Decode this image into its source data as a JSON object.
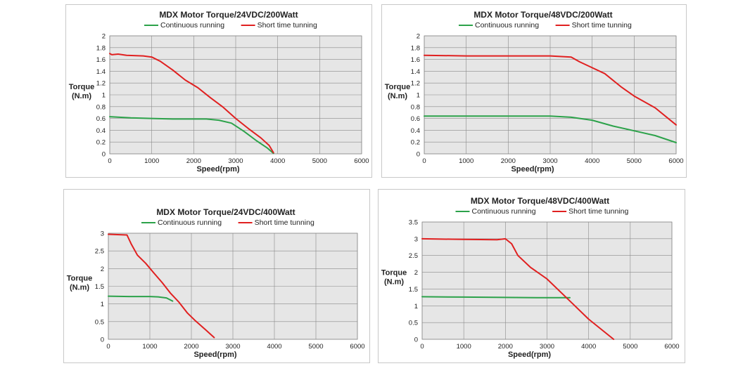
{
  "colors": {
    "continuous": "#2ca24a",
    "short": "#e02020",
    "plot_bg": "#e6e6e6",
    "grid": "#8a8a8a"
  },
  "chart_data": [
    {
      "type": "line",
      "title": "MDX  Motor Torque/24VDC/200Watt",
      "xlabel": "Speed(rpm)",
      "ylabel_line1": "Torque",
      "ylabel_line2": "(N.m)",
      "xlim": [
        0,
        6000
      ],
      "ylim": [
        0,
        2
      ],
      "x_ticks": [
        "0",
        "1000",
        "2000",
        "3000",
        "4000",
        "5000",
        "6000"
      ],
      "y_ticks": [
        "0",
        "0.2",
        "0.4",
        "0.6",
        "0.8",
        "1",
        "1.2",
        "1.4",
        "1.6",
        "1.8",
        "2"
      ],
      "legend": "top",
      "grid": true,
      "series": [
        {
          "name": "Continuous running",
          "color": "continuous",
          "x": [
            0,
            500,
            1000,
            1500,
            2000,
            2300,
            2600,
            2900,
            3200,
            3500,
            3750,
            3900
          ],
          "y": [
            0.63,
            0.61,
            0.6,
            0.59,
            0.59,
            0.59,
            0.57,
            0.52,
            0.38,
            0.22,
            0.1,
            0.01
          ]
        },
        {
          "name": "Short time tunning",
          "color": "short",
          "x": [
            0,
            50,
            200,
            400,
            800,
            1000,
            1200,
            1500,
            1800,
            2100,
            2400,
            2700,
            3000,
            3300,
            3600,
            3800,
            3900
          ],
          "y": [
            1.7,
            1.68,
            1.69,
            1.67,
            1.66,
            1.64,
            1.57,
            1.42,
            1.25,
            1.12,
            0.95,
            0.79,
            0.6,
            0.43,
            0.27,
            0.14,
            0.02
          ]
        }
      ]
    },
    {
      "type": "line",
      "title": "MDX  Motor Torque/48VDC/200Watt",
      "xlabel": "Speed(rpm)",
      "ylabel_line1": "Torque",
      "ylabel_line2": "(N.m)",
      "xlim": [
        0,
        6000
      ],
      "ylim": [
        0,
        2
      ],
      "x_ticks": [
        "0",
        "1000",
        "2000",
        "3000",
        "4000",
        "5000",
        "6000"
      ],
      "y_ticks": [
        "0",
        "0.2",
        "0.4",
        "0.6",
        "0.8",
        "1",
        "1.2",
        "1.4",
        "1.6",
        "1.8",
        "2"
      ],
      "legend": "top",
      "grid": true,
      "series": [
        {
          "name": "Continuous running",
          "color": "continuous",
          "x": [
            0,
            1000,
            2000,
            3000,
            3500,
            4000,
            4500,
            5000,
            5500,
            6000
          ],
          "y": [
            0.64,
            0.64,
            0.64,
            0.64,
            0.62,
            0.57,
            0.47,
            0.39,
            0.31,
            0.19
          ]
        },
        {
          "name": "Short time tunning",
          "color": "short",
          "x": [
            0,
            1000,
            2000,
            3000,
            3500,
            3700,
            4000,
            4300,
            4700,
            5000,
            5500,
            6000
          ],
          "y": [
            1.67,
            1.66,
            1.66,
            1.66,
            1.64,
            1.56,
            1.46,
            1.36,
            1.13,
            0.98,
            0.78,
            0.49
          ]
        }
      ]
    },
    {
      "type": "line",
      "title": "MDX  Motor Torque/24VDC/400Watt",
      "xlabel": "Speed(rpm)",
      "ylabel_line1": "Torque",
      "ylabel_line2": "(N.m)",
      "xlim": [
        0,
        6000
      ],
      "ylim": [
        0,
        3
      ],
      "x_ticks": [
        "0",
        "1000",
        "2000",
        "3000",
        "4000",
        "5000",
        "6000"
      ],
      "y_ticks": [
        "0",
        "0.5",
        "1",
        "1.5",
        "2",
        "2.5",
        "3"
      ],
      "legend": "top",
      "grid": true,
      "series": [
        {
          "name": "Continuous running",
          "color": "continuous",
          "x": [
            0,
            500,
            1000,
            1200,
            1400,
            1550
          ],
          "y": [
            1.22,
            1.21,
            1.21,
            1.2,
            1.17,
            1.08
          ]
        },
        {
          "name": "Short time tunning",
          "color": "short",
          "x": [
            0,
            450,
            550,
            700,
            900,
            1100,
            1300,
            1500,
            1700,
            1900,
            2100,
            2350,
            2550
          ],
          "y": [
            2.97,
            2.95,
            2.7,
            2.38,
            2.15,
            1.87,
            1.6,
            1.3,
            1.05,
            0.75,
            0.52,
            0.26,
            0.05
          ]
        }
      ]
    },
    {
      "type": "line",
      "title": "MDX  Motor Torque/48VDC/400Watt",
      "xlabel": "Speed(rpm)",
      "ylabel_line1": "Torque",
      "ylabel_line2": "(N.m)",
      "xlim": [
        0,
        6000
      ],
      "ylim": [
        0,
        3.5
      ],
      "x_ticks": [
        "0",
        "1000",
        "2000",
        "3000",
        "4000",
        "5000",
        "6000"
      ],
      "y_ticks": [
        "0",
        "0.5",
        "1",
        "1.5",
        "2",
        "2.5",
        "3",
        "3.5"
      ],
      "legend": "top",
      "grid": true,
      "series": [
        {
          "name": "Continuous running",
          "color": "continuous",
          "x": [
            0,
            1000,
            2000,
            3000,
            3550
          ],
          "y": [
            1.27,
            1.26,
            1.25,
            1.24,
            1.24
          ]
        },
        {
          "name": "Short time tunning",
          "color": "short",
          "x": [
            0,
            1000,
            1800,
            2000,
            2150,
            2300,
            2600,
            3000,
            3500,
            4000,
            4600
          ],
          "y": [
            3.0,
            2.98,
            2.97,
            3.0,
            2.85,
            2.5,
            2.15,
            1.8,
            1.2,
            0.6,
            0.0
          ]
        }
      ]
    }
  ]
}
